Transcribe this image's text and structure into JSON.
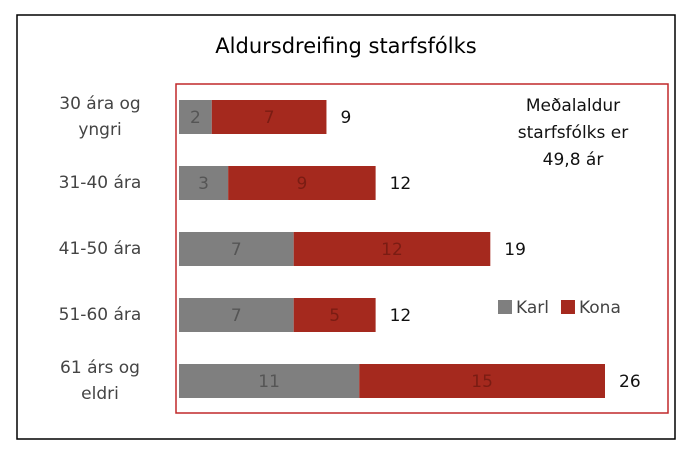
{
  "chart_data": {
    "type": "stacked-barh",
    "title": "Aldursdreifing starfsfólks",
    "categories": [
      "30 ára og yngri",
      "31-40 ára",
      "41-50 ára",
      "51-60 ára",
      "61 árs og eldri"
    ],
    "series": [
      {
        "name": "Karl",
        "color": "#7f7f7f",
        "label_color": "#555555",
        "values": [
          2,
          3,
          7,
          7,
          11
        ]
      },
      {
        "name": "Kona",
        "color": "#a5291e",
        "label_color": "#7a1c13",
        "values": [
          7,
          9,
          12,
          5,
          15
        ]
      }
    ],
    "totals": [
      9,
      12,
      19,
      12,
      26
    ],
    "xlim": [
      0,
      26
    ],
    "annotation": "Meðalaldur starfsfólks er 49,8 ár",
    "legend": "right"
  }
}
